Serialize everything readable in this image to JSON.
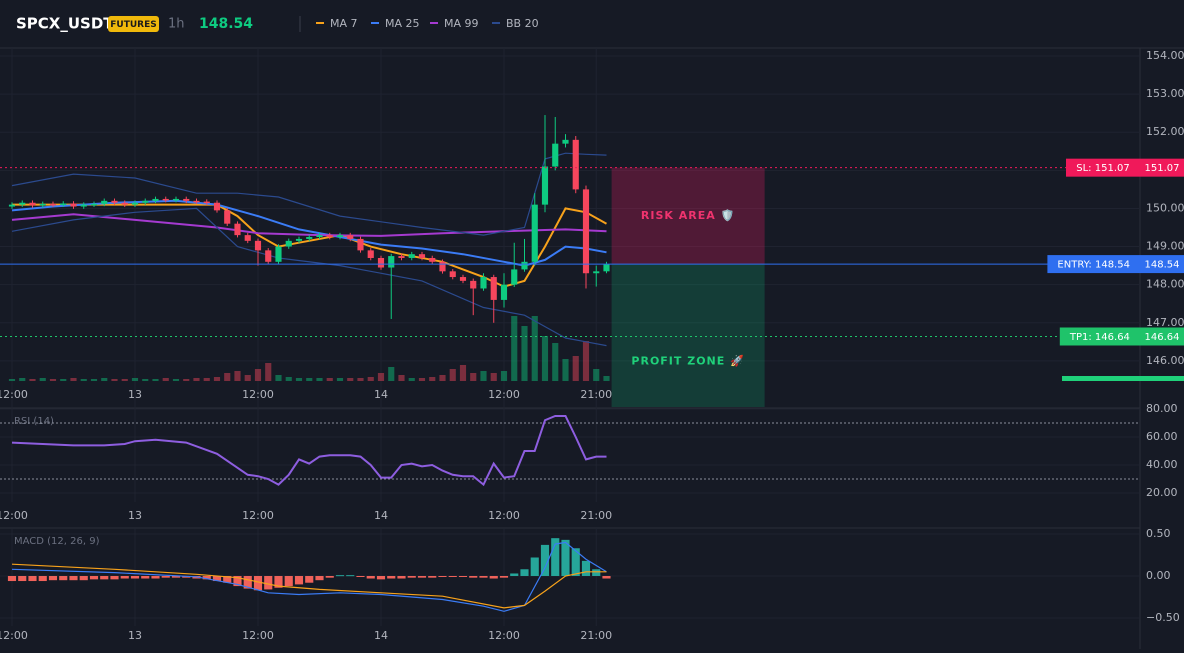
{
  "header": {
    "symbol": "SPCX_USDT",
    "badge": "FUTURES",
    "interval": "1h",
    "price": 148.54
  },
  "chart_data": [
    {
      "type": "candlestick",
      "up_color": "#0ecb81",
      "down_color": "#f6465d",
      "grid": true,
      "xlim": [
        -1.17,
        110.05
      ],
      "ylim": [
        144.79,
        154.21
      ],
      "xticks": [
        {
          "value": 0,
          "label": "12:00"
        },
        {
          "value": 12,
          "label": "13"
        },
        {
          "value": 24,
          "label": "12:00"
        },
        {
          "value": 36,
          "label": "14"
        },
        {
          "value": 48,
          "label": "12:00"
        },
        {
          "value": 57,
          "label": "21:00"
        }
      ],
      "yticks": [
        {
          "value": 146,
          "label": "146.00"
        },
        {
          "value": 147,
          "label": "147.00"
        },
        {
          "value": 148,
          "label": "148.00"
        },
        {
          "value": 149,
          "label": "149.00"
        },
        {
          "value": 150,
          "label": "150.00"
        },
        {
          "value": 151,
          "label": "151.00"
        },
        {
          "value": 152,
          "label": "152.00"
        },
        {
          "value": 153,
          "label": "153.00"
        },
        {
          "value": 154,
          "label": "154.00"
        }
      ],
      "x": [
        0,
        1,
        2,
        3,
        4,
        5,
        6,
        7,
        8,
        9,
        10,
        11,
        12,
        13,
        14,
        15,
        16,
        17,
        18,
        19,
        20,
        21,
        22,
        23,
        24,
        25,
        26,
        27,
        28,
        29,
        30,
        31,
        32,
        33,
        34,
        35,
        36,
        37,
        38,
        39,
        40,
        41,
        42,
        43,
        44,
        45,
        46,
        47,
        48,
        49,
        50,
        51,
        52,
        53,
        54,
        55,
        56,
        57,
        58
      ],
      "open": [
        150.05,
        150.1,
        150.15,
        150.08,
        150.12,
        150.1,
        150.13,
        150.05,
        150.1,
        150.12,
        150.2,
        150.15,
        150.1,
        150.15,
        150.2,
        150.25,
        150.22,
        150.25,
        150.2,
        150.18,
        150.15,
        149.95,
        149.6,
        149.3,
        149.15,
        148.9,
        148.6,
        149.0,
        149.15,
        149.2,
        149.25,
        149.3,
        149.25,
        149.3,
        149.2,
        148.9,
        148.7,
        148.45,
        148.75,
        148.7,
        148.8,
        148.7,
        148.6,
        148.35,
        148.2,
        148.1,
        147.9,
        148.2,
        147.6,
        148.0,
        148.4,
        148.6,
        150.1,
        151.1,
        151.7,
        151.8,
        150.5,
        148.3,
        148.35
      ],
      "high": [
        150.16,
        150.21,
        150.21,
        150.18,
        150.18,
        150.19,
        150.19,
        150.16,
        150.18,
        150.26,
        150.26,
        150.21,
        150.21,
        150.26,
        150.31,
        150.31,
        150.31,
        150.31,
        150.26,
        150.24,
        150.21,
        150.01,
        149.66,
        149.36,
        149.21,
        148.96,
        149.06,
        149.21,
        149.26,
        149.31,
        149.36,
        149.36,
        149.36,
        149.36,
        149.26,
        148.96,
        148.76,
        148.81,
        148.81,
        148.86,
        148.86,
        148.76,
        148.66,
        148.41,
        148.26,
        148.16,
        148.3,
        148.26,
        148.3,
        149.1,
        149.2,
        150.4,
        152.45,
        152.4,
        151.95,
        151.9,
        150.6,
        148.5,
        148.6
      ],
      "low": [
        149.99,
        150.04,
        150.02,
        150.02,
        150.04,
        150.04,
        149.99,
        149.99,
        150.04,
        150.06,
        150.09,
        150.04,
        150.04,
        150.09,
        150.14,
        150.16,
        150.16,
        150.14,
        150.12,
        150.09,
        149.89,
        149.54,
        149.24,
        149.09,
        148.5,
        148.54,
        148.54,
        148.94,
        149.09,
        149.14,
        149.19,
        149.19,
        149.19,
        149.14,
        148.84,
        148.64,
        148.39,
        147.1,
        148.64,
        148.64,
        148.64,
        148.54,
        148.29,
        148.14,
        148.04,
        147.2,
        147.84,
        147.0,
        147.4,
        147.94,
        148.34,
        148.5,
        149.9,
        151.0,
        151.6,
        150.4,
        147.9,
        147.95,
        148.3
      ],
      "close": [
        150.1,
        150.15,
        150.08,
        150.12,
        150.1,
        150.13,
        150.05,
        150.1,
        150.12,
        150.2,
        150.15,
        150.1,
        150.15,
        150.2,
        150.25,
        150.22,
        150.25,
        150.2,
        150.18,
        150.15,
        149.95,
        149.6,
        149.3,
        149.15,
        148.9,
        148.6,
        149.0,
        149.15,
        149.2,
        149.25,
        149.3,
        149.25,
        149.3,
        149.2,
        148.9,
        148.7,
        148.45,
        148.75,
        148.7,
        148.8,
        148.7,
        148.6,
        148.35,
        148.2,
        148.1,
        147.9,
        148.2,
        147.6,
        148.0,
        148.4,
        148.6,
        150.1,
        151.1,
        151.7,
        151.8,
        150.5,
        148.3,
        148.35,
        148.54
      ],
      "volume": [
        2,
        3,
        2,
        3,
        2,
        2,
        3,
        2,
        2,
        3,
        2,
        2,
        3,
        2,
        2,
        3,
        2,
        2,
        3,
        3,
        4,
        8,
        10,
        6,
        12,
        18,
        6,
        4,
        3,
        3,
        3,
        3,
        3,
        3,
        3,
        4,
        8,
        14,
        6,
        3,
        3,
        4,
        6,
        12,
        16,
        8,
        10,
        8,
        10,
        65,
        55,
        65,
        45,
        38,
        22,
        25,
        40,
        12,
        5
      ],
      "overlays": [
        {
          "name": "MA 7",
          "color": "#f7a21b",
          "x": [
            0,
            20,
            22,
            24,
            26,
            28,
            32,
            35,
            38,
            42,
            46,
            48,
            50,
            52,
            54,
            56,
            58
          ],
          "values": [
            150.1,
            150.1,
            149.8,
            149.3,
            149.0,
            149.1,
            149.3,
            149.0,
            148.8,
            148.6,
            148.2,
            147.95,
            148.1,
            149.0,
            150.0,
            149.9,
            149.6
          ]
        },
        {
          "name": "MA 25",
          "color": "#3b7cf6",
          "x": [
            0,
            4,
            10,
            16,
            20,
            24,
            28,
            32,
            36,
            40,
            44,
            48,
            50,
            52,
            54,
            56,
            58
          ],
          "values": [
            149.95,
            150.05,
            150.15,
            150.2,
            150.1,
            149.8,
            149.45,
            149.25,
            149.05,
            148.95,
            148.8,
            148.6,
            148.5,
            148.65,
            149.0,
            148.95,
            148.85
          ]
        },
        {
          "name": "MA 99",
          "color": "#a53ad0",
          "x": [
            0,
            6,
            12,
            20,
            24,
            30,
            36,
            42,
            48,
            54,
            58
          ],
          "values": [
            149.7,
            149.85,
            149.7,
            149.5,
            149.35,
            149.3,
            149.28,
            149.35,
            149.4,
            149.45,
            149.4
          ]
        },
        {
          "name": "BB 20",
          "color": "#2b4a8e",
          "x": [
            0,
            6,
            12,
            18,
            22,
            26,
            32,
            40,
            46,
            50,
            52,
            54,
            56,
            58
          ],
          "upper": [
            150.6,
            150.9,
            150.8,
            150.4,
            150.4,
            150.3,
            149.8,
            149.5,
            149.3,
            149.5,
            151.3,
            151.45,
            151.42,
            151.4
          ],
          "lower": [
            149.4,
            149.7,
            149.9,
            150.0,
            149.0,
            148.7,
            148.5,
            148.1,
            147.4,
            147.2,
            146.9,
            146.6,
            146.5,
            146.4
          ]
        }
      ],
      "levels": [
        {
          "label": "SL: 151.07",
          "value": 151.07,
          "color": "#f0195a",
          "dashed": true
        },
        {
          "label": "ENTRY: 148.54",
          "value": 148.54,
          "color": "#2f6ff0",
          "dashed": false
        },
        {
          "label": "TP1: 146.64",
          "value": 146.64,
          "color": "#1fc36a",
          "dashed": true
        }
      ],
      "zones": [
        {
          "label": "RISK AREA 🛡️",
          "color": "#e91e63",
          "text_color": "#f0336e"
        },
        {
          "label": "PROFIT ZONE 🚀",
          "color": "#0ecb81",
          "text_color": "#1fd17a"
        }
      ]
    },
    {
      "type": "line",
      "title": "RSI (14)",
      "color": "#8e5ee0",
      "bands": [
        30,
        70
      ],
      "xlim": [
        -1.17,
        110.05
      ],
      "ylim": [
        13.6,
        80.7
      ],
      "xticks": [
        {
          "value": 0,
          "label": "12:00"
        },
        {
          "value": 12,
          "label": "13"
        },
        {
          "value": 24,
          "label": "12:00"
        },
        {
          "value": 36,
          "label": "14"
        },
        {
          "value": 48,
          "label": "12:00"
        },
        {
          "value": 57,
          "label": "21:00"
        }
      ],
      "yticks": [
        {
          "value": 20,
          "label": "20.00"
        },
        {
          "value": 40,
          "label": "40.00"
        },
        {
          "value": 60,
          "label": "60.00"
        },
        {
          "value": 80,
          "label": "80.00"
        }
      ],
      "x": [
        0,
        3,
        6,
        9,
        11,
        12,
        14,
        17,
        20,
        22,
        23,
        24,
        25,
        26,
        27,
        28,
        29,
        30,
        31,
        33,
        34,
        35,
        36,
        37,
        38,
        39,
        40,
        41,
        42,
        43,
        44,
        45,
        46,
        47,
        48,
        49,
        50,
        51,
        52,
        53,
        54,
        55,
        56,
        57,
        58
      ],
      "values": [
        56,
        55,
        54,
        54,
        55,
        57,
        58,
        56,
        48,
        38,
        33,
        32,
        30,
        26,
        33,
        44,
        41,
        46,
        47,
        47,
        46,
        40,
        31,
        31,
        40,
        41,
        39,
        40,
        36,
        33,
        32,
        32,
        26,
        41,
        31,
        32,
        50,
        50,
        72,
        75,
        75,
        60,
        44,
        46,
        46
      ]
    },
    {
      "type": "macd",
      "title": "MACD (12, 26, 9)",
      "up_color": "#26a69a",
      "down_color": "#f0625a",
      "xlim": [
        -1.17,
        110.05
      ],
      "ylim": [
        -0.595,
        0.571
      ],
      "xticks": [
        {
          "value": 0,
          "label": "12:00"
        },
        {
          "value": 12,
          "label": "13"
        },
        {
          "value": 24,
          "label": "12:00"
        },
        {
          "value": 36,
          "label": "14"
        },
        {
          "value": 48,
          "label": "12:00"
        },
        {
          "value": 57,
          "label": "21:00"
        }
      ],
      "yticks": [
        {
          "value": -0.5,
          "label": "−0.50"
        },
        {
          "value": 0,
          "label": "0.00"
        },
        {
          "value": 0.5,
          "label": "0.50"
        }
      ],
      "x": [
        0,
        1,
        2,
        3,
        4,
        5,
        6,
        7,
        8,
        9,
        10,
        11,
        12,
        13,
        14,
        15,
        16,
        17,
        18,
        19,
        20,
        21,
        22,
        23,
        24,
        25,
        26,
        27,
        28,
        29,
        30,
        31,
        32,
        33,
        34,
        35,
        36,
        37,
        38,
        39,
        40,
        41,
        42,
        43,
        44,
        45,
        46,
        47,
        48,
        49,
        50,
        51,
        52,
        53,
        54,
        55,
        56,
        57,
        58
      ],
      "histogram": [
        -0.06,
        -0.06,
        -0.06,
        -0.06,
        -0.05,
        -0.05,
        -0.05,
        -0.05,
        -0.04,
        -0.04,
        -0.04,
        -0.03,
        -0.03,
        -0.03,
        -0.03,
        -0.02,
        -0.02,
        -0.02,
        -0.03,
        -0.04,
        -0.06,
        -0.08,
        -0.12,
        -0.15,
        -0.17,
        -0.16,
        -0.14,
        -0.12,
        -0.1,
        -0.08,
        -0.05,
        -0.02,
        0.01,
        0.01,
        -0.01,
        -0.03,
        -0.04,
        -0.03,
        -0.03,
        -0.02,
        -0.02,
        -0.02,
        -0.01,
        -0.01,
        -0.01,
        -0.02,
        -0.02,
        -0.03,
        -0.02,
        0.03,
        0.08,
        0.22,
        0.37,
        0.45,
        0.43,
        0.33,
        0.18,
        0.08,
        -0.03
      ],
      "lines": [
        {
          "color": "#3b7cf6",
          "x": [
            0,
            10,
            18,
            22,
            25,
            28,
            32,
            36,
            42,
            46,
            48,
            50,
            52,
            53,
            54,
            56,
            58
          ],
          "values": [
            0.08,
            0.04,
            -0.01,
            -0.1,
            -0.2,
            -0.22,
            -0.2,
            -0.22,
            -0.28,
            -0.36,
            -0.42,
            -0.35,
            0.1,
            0.38,
            0.4,
            0.2,
            0.05
          ]
        },
        {
          "color": "#f7a21b",
          "x": [
            0,
            10,
            18,
            22,
            26,
            30,
            36,
            42,
            48,
            50,
            52,
            54,
            56,
            58
          ],
          "values": [
            0.14,
            0.08,
            0.02,
            -0.02,
            -0.12,
            -0.16,
            -0.2,
            -0.24,
            -0.38,
            -0.35,
            -0.18,
            0.0,
            0.05,
            0.05
          ]
        }
      ]
    }
  ]
}
